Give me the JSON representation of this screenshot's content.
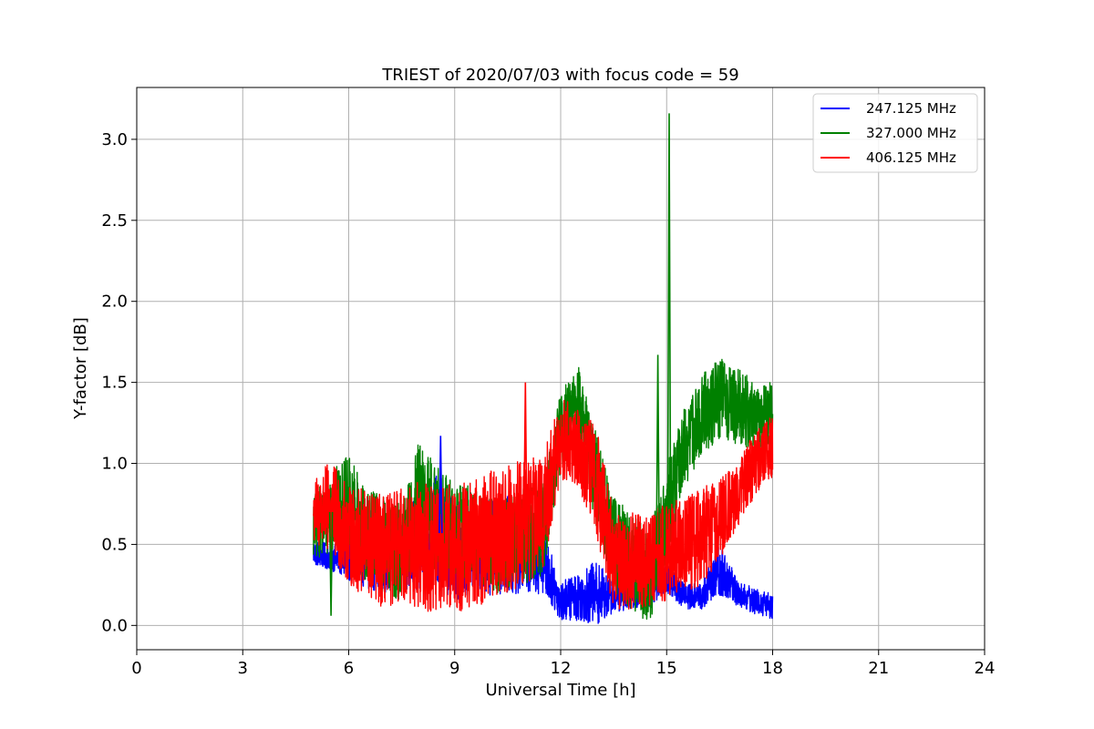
{
  "chart_data": {
    "type": "line",
    "title": "TRIEST of 2020/07/03 with focus code = 59",
    "xlabel": "Universal Time [h]",
    "ylabel": "Y-factor [dB]",
    "xlim": [
      0,
      24
    ],
    "ylim": [
      -0.15,
      3.32
    ],
    "xticks": [
      0,
      3,
      6,
      9,
      12,
      15,
      18,
      21,
      24
    ],
    "xtick_labels": [
      "0",
      "3",
      "6",
      "9",
      "12",
      "15",
      "18",
      "21",
      "24"
    ],
    "yticks": [
      0.0,
      0.5,
      1.0,
      1.5,
      2.0,
      2.5,
      3.0
    ],
    "ytick_labels": [
      "0.0",
      "0.5",
      "1.0",
      "1.5",
      "2.0",
      "2.5",
      "3.0"
    ],
    "grid": true,
    "legend_position": "top-right",
    "series": [
      {
        "name": "247.125 MHz",
        "color": "#0000ff",
        "x": [
          5.0,
          5.5,
          6.0,
          6.5,
          7.0,
          7.5,
          8.0,
          8.5,
          9.0,
          9.5,
          10.0,
          10.5,
          11.0,
          11.5,
          12.0,
          12.5,
          13.0,
          13.5,
          14.0,
          14.5,
          15.0,
          15.5,
          16.0,
          16.5,
          17.0,
          17.5,
          18.0
        ],
        "y": [
          0.45,
          0.42,
          0.4,
          0.48,
          0.45,
          0.45,
          0.52,
          0.6,
          0.45,
          0.5,
          0.48,
          0.5,
          0.48,
          0.4,
          0.15,
          0.18,
          0.2,
          0.18,
          0.2,
          0.22,
          0.3,
          0.18,
          0.18,
          0.35,
          0.2,
          0.15,
          0.12
        ],
        "spread": [
          0.08,
          0.08,
          0.12,
          0.25,
          0.25,
          0.25,
          0.3,
          0.35,
          0.3,
          0.3,
          0.3,
          0.3,
          0.3,
          0.2,
          0.12,
          0.15,
          0.2,
          0.1,
          0.1,
          0.1,
          0.1,
          0.08,
          0.08,
          0.18,
          0.08,
          0.08,
          0.08
        ]
      },
      {
        "name": "327.000 MHz",
        "color": "#008000",
        "x": [
          5.0,
          5.5,
          6.0,
          6.5,
          7.0,
          7.5,
          8.0,
          8.5,
          9.0,
          9.5,
          10.0,
          10.5,
          11.0,
          11.5,
          12.0,
          12.5,
          13.0,
          13.5,
          14.0,
          14.5,
          15.0,
          15.5,
          16.0,
          16.5,
          17.0,
          17.5,
          18.0
        ],
        "y": [
          0.6,
          0.7,
          0.75,
          0.55,
          0.5,
          0.45,
          0.8,
          0.65,
          0.6,
          0.55,
          0.5,
          0.5,
          0.55,
          0.6,
          1.2,
          1.4,
          0.9,
          0.5,
          0.4,
          0.3,
          0.7,
          1.1,
          1.3,
          1.4,
          1.35,
          1.3,
          1.3
        ],
        "spread": [
          0.2,
          0.25,
          0.3,
          0.3,
          0.3,
          0.3,
          0.35,
          0.35,
          0.3,
          0.3,
          0.3,
          0.3,
          0.3,
          0.3,
          0.25,
          0.2,
          0.3,
          0.3,
          0.3,
          0.3,
          0.3,
          0.25,
          0.25,
          0.25,
          0.25,
          0.2,
          0.2
        ]
      },
      {
        "name": "406.125 MHz",
        "color": "#ff0000",
        "x": [
          5.0,
          5.5,
          6.0,
          6.5,
          7.0,
          7.5,
          8.0,
          8.5,
          9.0,
          9.5,
          10.0,
          10.5,
          11.0,
          11.5,
          12.0,
          12.5,
          13.0,
          13.5,
          14.0,
          14.5,
          15.0,
          15.5,
          16.0,
          16.5,
          17.0,
          17.5,
          18.0
        ],
        "y": [
          0.7,
          0.72,
          0.55,
          0.5,
          0.45,
          0.5,
          0.5,
          0.45,
          0.48,
          0.5,
          0.55,
          0.6,
          0.65,
          0.7,
          1.15,
          1.1,
          0.9,
          0.4,
          0.4,
          0.42,
          0.45,
          0.5,
          0.55,
          0.65,
          0.8,
          1.0,
          1.1
        ],
        "spread": [
          0.2,
          0.3,
          0.3,
          0.35,
          0.35,
          0.35,
          0.4,
          0.4,
          0.4,
          0.4,
          0.4,
          0.4,
          0.4,
          0.35,
          0.25,
          0.25,
          0.35,
          0.3,
          0.3,
          0.3,
          0.3,
          0.3,
          0.3,
          0.25,
          0.2,
          0.2,
          0.2
        ]
      }
    ],
    "spikes": [
      {
        "series": "327.000 MHz",
        "x": 15.07,
        "y": 3.16
      },
      {
        "series": "327.000 MHz",
        "x": 14.75,
        "y": 1.67
      },
      {
        "series": "406.125 MHz",
        "x": 11.0,
        "y": 1.5
      },
      {
        "series": "247.125 MHz",
        "x": 8.6,
        "y": 1.17
      },
      {
        "series": "327.000 MHz",
        "x": 5.5,
        "y": 0.06
      }
    ]
  }
}
